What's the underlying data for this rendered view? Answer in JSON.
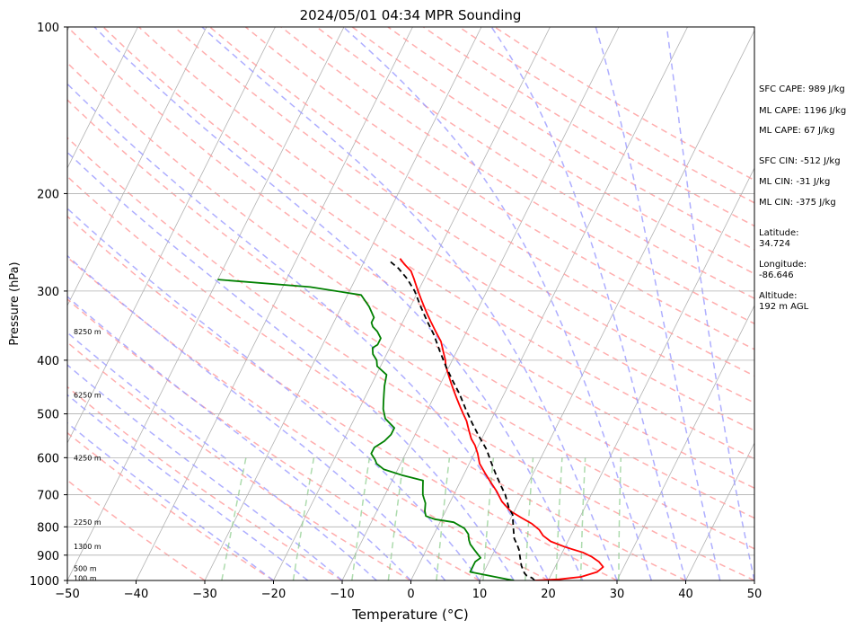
{
  "chart_data": {
    "type": "line",
    "title": "2024/05/01 04:34 MPR Sounding",
    "xlabel": "Temperature (°C)",
    "ylabel": "Pressure (hPa)",
    "xlim": [
      -50,
      50
    ],
    "ylim": [
      1000,
      100
    ],
    "y_scale": "log",
    "x_ticks": [
      -50,
      -40,
      -30,
      -20,
      -10,
      0,
      10,
      20,
      30,
      40,
      50
    ],
    "y_ticks": [
      100,
      200,
      300,
      400,
      500,
      600,
      700,
      800,
      900,
      1000
    ],
    "grid": true,
    "series": [
      {
        "role": "temperature",
        "color": "#ff0000",
        "points": [
          [
            18.0,
            1000
          ],
          [
            21.5,
            995
          ],
          [
            24.5,
            985
          ],
          [
            26.5,
            965
          ],
          [
            27.0,
            945
          ],
          [
            26.0,
            925
          ],
          [
            24.5,
            905
          ],
          [
            23.0,
            890
          ],
          [
            20.0,
            870
          ],
          [
            17.5,
            850
          ],
          [
            16.0,
            830
          ],
          [
            15.0,
            810
          ],
          [
            13.5,
            790
          ],
          [
            11.5,
            770
          ],
          [
            9.5,
            750
          ],
          [
            7.5,
            720
          ],
          [
            6.0,
            690
          ],
          [
            4.5,
            665
          ],
          [
            3.0,
            640
          ],
          [
            1.5,
            615
          ],
          [
            0.5,
            590
          ],
          [
            -0.5,
            570
          ],
          [
            -1.5,
            555
          ],
          [
            -2.5,
            535
          ],
          [
            -3.5,
            515
          ],
          [
            -4.5,
            500
          ],
          [
            -5.5,
            485
          ],
          [
            -6.5,
            470
          ],
          [
            -7.5,
            455
          ],
          [
            -8.5,
            440
          ],
          [
            -9.5,
            425
          ],
          [
            -10.5,
            410
          ],
          [
            -11.0,
            400
          ],
          [
            -12.0,
            385
          ],
          [
            -13.0,
            370
          ],
          [
            -14.5,
            355
          ],
          [
            -16.0,
            340
          ],
          [
            -17.0,
            330
          ],
          [
            -18.0,
            320
          ],
          [
            -19.0,
            310
          ],
          [
            -20.0,
            300
          ],
          [
            -21.0,
            290
          ],
          [
            -21.5,
            285
          ],
          [
            -22.5,
            276
          ],
          [
            -24.0,
            268
          ],
          [
            -25.0,
            262
          ]
        ]
      },
      {
        "role": "dewpoint",
        "color": "#008000",
        "points": [
          [
            15.0,
            1000
          ],
          [
            14.0,
            995
          ],
          [
            11.0,
            980
          ],
          [
            10.0,
            975
          ],
          [
            8.0,
            965
          ],
          [
            8.0,
            940
          ],
          [
            8.0,
            925
          ],
          [
            8.5,
            910
          ],
          [
            7.0,
            880
          ],
          [
            6.0,
            860
          ],
          [
            5.5,
            845
          ],
          [
            5.0,
            825
          ],
          [
            4.0,
            805
          ],
          [
            2.0,
            785
          ],
          [
            -1.0,
            775
          ],
          [
            -2.5,
            765
          ],
          [
            -3.0,
            750
          ],
          [
            -3.5,
            725
          ],
          [
            -4.5,
            700
          ],
          [
            -5.0,
            680
          ],
          [
            -5.5,
            660
          ],
          [
            -9.0,
            645
          ],
          [
            -12.0,
            630
          ],
          [
            -13.5,
            615
          ],
          [
            -14.0,
            605
          ],
          [
            -15.0,
            590
          ],
          [
            -15.0,
            575
          ],
          [
            -14.0,
            560
          ],
          [
            -13.5,
            545
          ],
          [
            -13.5,
            530
          ],
          [
            -15.5,
            510
          ],
          [
            -16.5,
            490
          ],
          [
            -17.0,
            475
          ],
          [
            -17.5,
            460
          ],
          [
            -18.0,
            445
          ],
          [
            -18.5,
            425
          ],
          [
            -20.5,
            410
          ],
          [
            -21.0,
            400
          ],
          [
            -22.0,
            390
          ],
          [
            -22.5,
            380
          ],
          [
            -22.0,
            375
          ],
          [
            -22.0,
            365
          ],
          [
            -23.0,
            355
          ],
          [
            -24.0,
            348
          ],
          [
            -24.5,
            342
          ],
          [
            -24.5,
            335
          ],
          [
            -26.0,
            320
          ],
          [
            -28.0,
            305
          ],
          [
            -36.0,
            295
          ],
          [
            -50.0,
            286
          ]
        ]
      },
      {
        "role": "parcel",
        "color": "#000000",
        "dashed": true,
        "points": [
          [
            18.0,
            1000
          ],
          [
            17.5,
            990
          ],
          [
            16.5,
            980
          ],
          [
            16.0,
            970
          ],
          [
            15.5,
            955
          ],
          [
            15.0,
            940
          ],
          [
            14.5,
            920
          ],
          [
            14.0,
            900
          ],
          [
            13.5,
            880
          ],
          [
            12.8,
            860
          ],
          [
            12.0,
            840
          ],
          [
            11.5,
            820
          ],
          [
            11.0,
            800
          ],
          [
            10.5,
            780
          ],
          [
            10.0,
            760
          ],
          [
            9.0,
            740
          ],
          [
            7.5,
            700
          ],
          [
            6.0,
            670
          ],
          [
            4.5,
            640
          ],
          [
            3.0,
            610
          ],
          [
            1.5,
            580
          ],
          [
            -0.5,
            550
          ],
          [
            -2.5,
            520
          ],
          [
            -4.5,
            490
          ],
          [
            -6.5,
            460
          ],
          [
            -8.5,
            435
          ],
          [
            -10.5,
            410
          ],
          [
            -12.5,
            385
          ],
          [
            -14.5,
            360
          ],
          [
            -16.5,
            340
          ],
          [
            -18.5,
            320
          ],
          [
            -20.5,
            300
          ],
          [
            -22.5,
            285
          ],
          [
            -24.5,
            273
          ],
          [
            -26.5,
            264
          ]
        ]
      }
    ],
    "background_lines": {
      "isotherm_color": "#b0b0b0",
      "dry_adiabat_color": "#ff9a9a",
      "moist_adiabat_color": "#9a9aff",
      "mixing_ratio_color": "#8acc8a"
    },
    "height_labels": [
      {
        "label": "8250 m",
        "p": 355
      },
      {
        "label": "6250 m",
        "p": 462
      },
      {
        "label": "4250 m",
        "p": 600
      },
      {
        "label": "2250 m",
        "p": 785
      },
      {
        "label": "1300 m",
        "p": 868
      },
      {
        "label": "500 m",
        "p": 950
      },
      {
        "label": "100 m",
        "p": 990
      }
    ],
    "annotations": {
      "sfc_cape": "SFC CAPE: 989 J/kg",
      "ml_cape_1": "ML CAPE: 1196 J/kg",
      "ml_cape_2": "ML CAPE: 67 J/kg",
      "sfc_cin": "SFC CIN: -512 J/kg",
      "ml_cin_1": "ML CIN: -31 J/kg",
      "ml_cin_2": "ML CIN: -375 J/kg",
      "latitude_label": "Latitude:",
      "latitude_value": "34.724",
      "longitude_label": "Longitude:",
      "longitude_value": "-86.646",
      "altitude_label": "Altitude:",
      "altitude_value": "192 m AGL"
    }
  }
}
